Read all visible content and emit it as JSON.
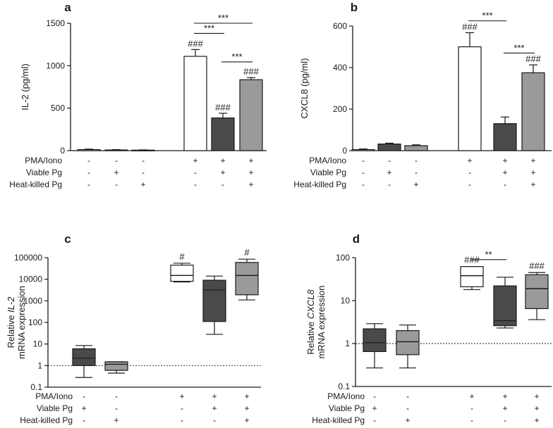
{
  "colors": {
    "white": "#ffffff",
    "dark": "#4a4a4a",
    "mid": "#9a9a9a",
    "light": "#b8b8b8",
    "axis": "#1a1a1a"
  },
  "chart_data": [
    {
      "id": "a",
      "type": "bar",
      "panel_label": "a",
      "ylabel": "IL-2 (pg/ml)",
      "yscale": "linear",
      "ylim": [
        0,
        1500
      ],
      "yticks": [
        0,
        500,
        1000,
        1500
      ],
      "ytick_labels": [
        "0",
        "500",
        "1000",
        "1500"
      ],
      "conditions": [
        {
          "label": "PMA/Iono",
          "signs": [
            "-",
            "-",
            "-",
            "+",
            "+",
            "+"
          ]
        },
        {
          "label": "Viable Pg",
          "signs": [
            "-",
            "+",
            "-",
            "-",
            "+",
            "+"
          ]
        },
        {
          "label": "Heat-killed Pg",
          "signs": [
            "-",
            "-",
            "+",
            "-",
            "-",
            "+"
          ]
        }
      ],
      "bars": [
        {
          "value": 12,
          "err": 6,
          "fill": "white",
          "annot": ""
        },
        {
          "value": 8,
          "err": 4,
          "fill": "dark",
          "annot": ""
        },
        {
          "value": 6,
          "err": 3,
          "fill": "mid",
          "annot": ""
        },
        {
          "value": 1110,
          "err": 80,
          "fill": "white",
          "annot": "###"
        },
        {
          "value": 385,
          "err": 55,
          "fill": "dark",
          "annot": "###"
        },
        {
          "value": 835,
          "err": 25,
          "fill": "mid",
          "annot": "###"
        }
      ],
      "sig": [
        {
          "from": 3,
          "to": 4,
          "y": 1380,
          "label": "***"
        },
        {
          "from": 3,
          "to": 5,
          "y": 1500,
          "label": "***"
        },
        {
          "from": 4,
          "to": 5,
          "y": 1045,
          "label": "***"
        }
      ]
    },
    {
      "id": "b",
      "type": "bar",
      "panel_label": "b",
      "ylabel": "CXCL8 (pg/ml)",
      "yscale": "linear",
      "ylim": [
        0,
        600
      ],
      "yticks": [
        0,
        200,
        400,
        600
      ],
      "ytick_labels": [
        "0",
        "200",
        "400",
        "600"
      ],
      "conditions": [
        {
          "label": "PMA/Iono",
          "signs": [
            "-",
            "-",
            "-",
            "+",
            "+",
            "+"
          ]
        },
        {
          "label": "Viable Pg",
          "signs": [
            "-",
            "+",
            "-",
            "-",
            "+",
            "+"
          ]
        },
        {
          "label": "Heat-killed Pg",
          "signs": [
            "-",
            "-",
            "+",
            "-",
            "-",
            "+"
          ]
        }
      ],
      "bars": [
        {
          "value": 5,
          "err": 3,
          "fill": "white",
          "annot": ""
        },
        {
          "value": 32,
          "err": 4,
          "fill": "dark",
          "annot": ""
        },
        {
          "value": 24,
          "err": 4,
          "fill": "mid",
          "annot": ""
        },
        {
          "value": 500,
          "err": 68,
          "fill": "white",
          "annot": "###"
        },
        {
          "value": 130,
          "err": 32,
          "fill": "dark",
          "annot": ""
        },
        {
          "value": 375,
          "err": 38,
          "fill": "mid",
          "annot": "###"
        }
      ],
      "sig": [
        {
          "from": 3,
          "to": 4,
          "y": 625,
          "label": "***"
        },
        {
          "from": 4,
          "to": 5,
          "y": 470,
          "label": "***"
        }
      ]
    },
    {
      "id": "c",
      "type": "box",
      "panel_label": "c",
      "ylabel_lines": [
        "Relative IL-2",
        "mRNA expression"
      ],
      "ylabel_italic": "IL-2",
      "yscale": "log",
      "ylim": [
        0.1,
        100000
      ],
      "yticks": [
        0.1,
        1,
        10,
        100,
        1000,
        10000,
        100000
      ],
      "ytick_labels": [
        "0.1",
        "1",
        "10",
        "100",
        "1000",
        "10000",
        "100000"
      ],
      "reference_line": 1,
      "conditions": [
        {
          "label": "PMA/Iono",
          "signs": [
            "-",
            "-",
            "+",
            "+",
            "+"
          ]
        },
        {
          "label": "Viable Pg",
          "signs": [
            "+",
            "-",
            "-",
            "+",
            "+"
          ]
        },
        {
          "label": "Heat-killed Pg",
          "signs": [
            "-",
            "+",
            "-",
            "-",
            "+"
          ]
        }
      ],
      "groups": [
        1,
        1,
        2,
        2,
        2
      ],
      "boxes": [
        {
          "min": 0.28,
          "q1": 1.0,
          "median": 2.2,
          "q3": 6.0,
          "max": 8.5,
          "fill": "dark",
          "annot": ""
        },
        {
          "min": 0.45,
          "q1": 0.6,
          "median": 1.15,
          "q3": 1.5,
          "max": 1.5,
          "fill": "mid",
          "annot": ""
        },
        {
          "min": 7500,
          "q1": 8000,
          "median": 15000,
          "q3": 45000,
          "max": 55000,
          "fill": "white",
          "annot": "#"
        },
        {
          "min": 28,
          "q1": 110,
          "median": 3200,
          "q3": 9000,
          "max": 14000,
          "fill": "dark",
          "annot": ""
        },
        {
          "min": 1100,
          "q1": 1900,
          "median": 15000,
          "q3": 60000,
          "max": 85000,
          "fill": "mid",
          "annot": "#"
        }
      ],
      "sig": []
    },
    {
      "id": "d",
      "type": "box",
      "panel_label": "d",
      "ylabel_lines": [
        "Relative CXCL8",
        "mRNA expression"
      ],
      "ylabel_italic": "CXCL8",
      "yscale": "log",
      "ylim": [
        0.1,
        100
      ],
      "yticks": [
        0.1,
        1,
        10,
        100
      ],
      "ytick_labels": [
        "0.1",
        "1",
        "10",
        "100"
      ],
      "reference_line": 1,
      "conditions": [
        {
          "label": "PMA/Iono",
          "signs": [
            "-",
            "-",
            "+",
            "+",
            "+"
          ]
        },
        {
          "label": "Viable Pg",
          "signs": [
            "+",
            "-",
            "-",
            "+",
            "+"
          ]
        },
        {
          "label": "Heat-killed Pg",
          "signs": [
            "-",
            "+",
            "-",
            "-",
            "+"
          ]
        }
      ],
      "groups": [
        1,
        1,
        2,
        2,
        2
      ],
      "boxes": [
        {
          "min": 0.27,
          "q1": 0.65,
          "median": 1.05,
          "q3": 2.2,
          "max": 2.9,
          "fill": "dark",
          "annot": ""
        },
        {
          "min": 0.27,
          "q1": 0.55,
          "median": 1.1,
          "q3": 2.0,
          "max": 2.7,
          "fill": "mid",
          "annot": ""
        },
        {
          "min": 18,
          "q1": 21,
          "median": 38,
          "q3": 62,
          "max": 62,
          "fill": "white",
          "annot": "###"
        },
        {
          "min": 2.3,
          "q1": 2.6,
          "median": 3.4,
          "q3": 22,
          "max": 35,
          "fill": "dark",
          "annot": ""
        },
        {
          "min": 3.6,
          "q1": 6.5,
          "median": 19,
          "q3": 40,
          "max": 45,
          "fill": "mid",
          "annot": "###"
        }
      ],
      "sig": [
        {
          "from": 2,
          "to": 3,
          "y": 90,
          "label": "**"
        }
      ]
    }
  ]
}
